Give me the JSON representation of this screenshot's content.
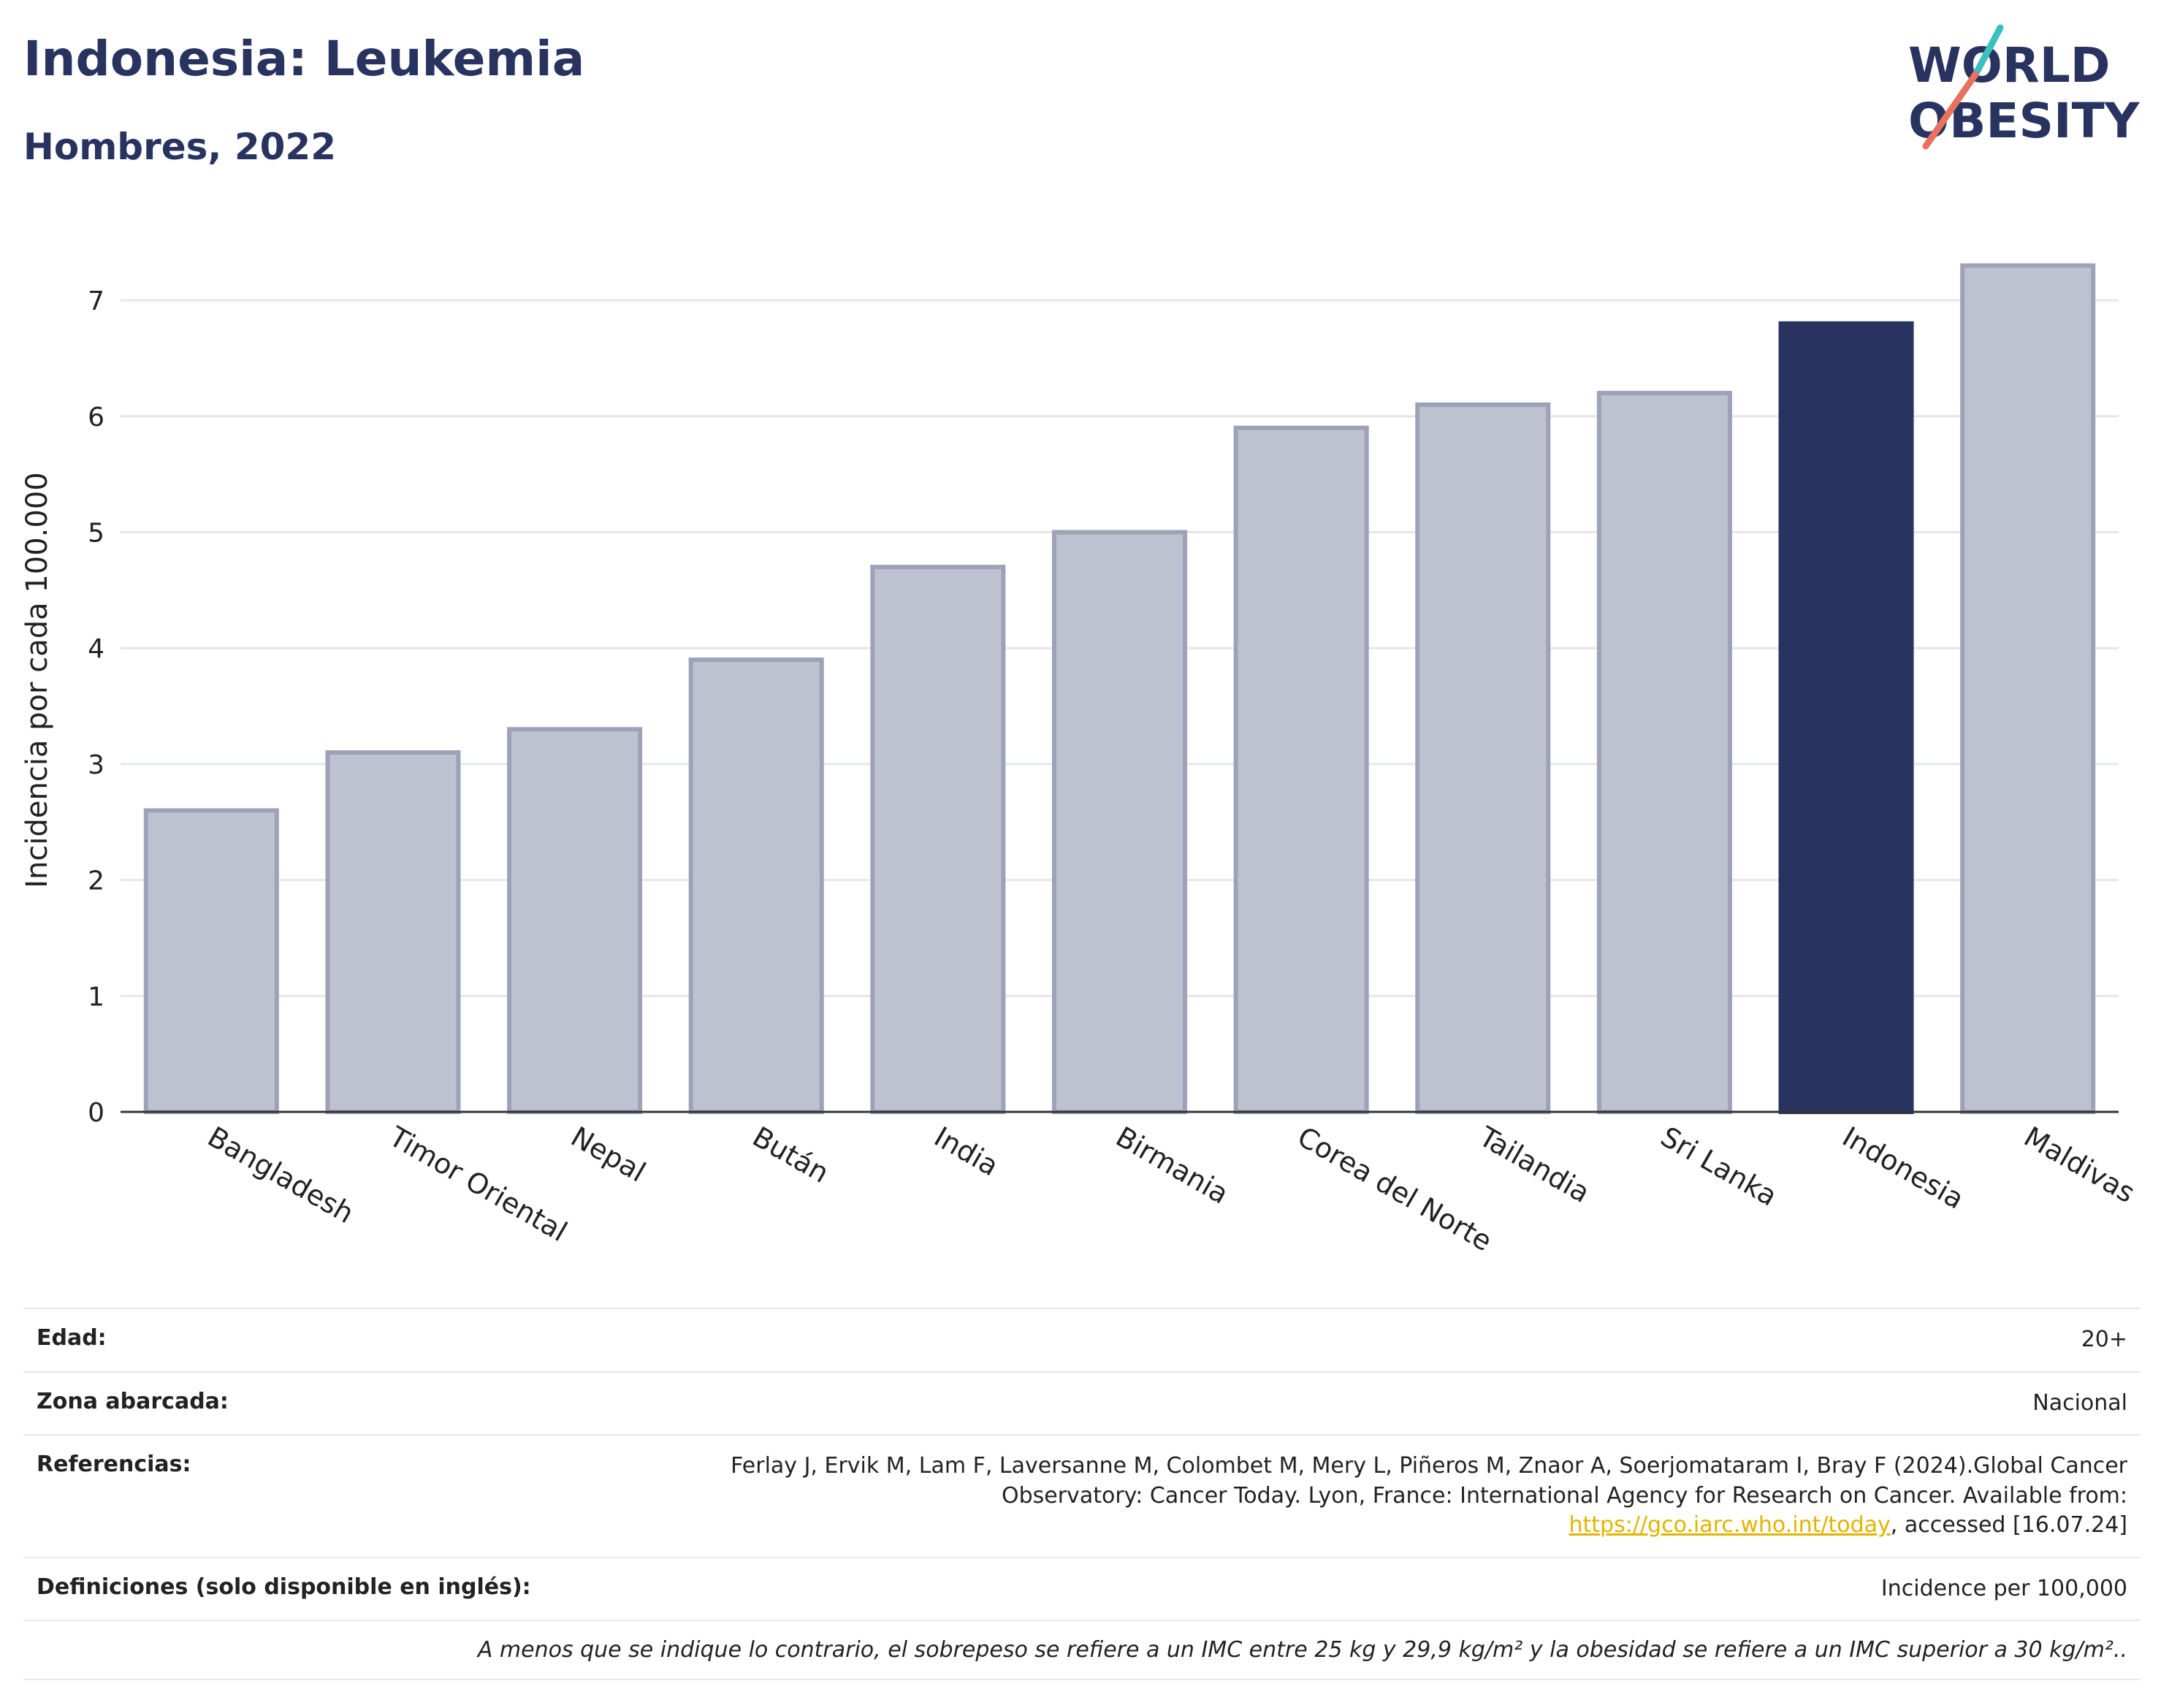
{
  "header": {
    "title": "Indonesia: Leukemia",
    "subtitle": "Hombres, 2022"
  },
  "logo": {
    "line1": "WORLD",
    "line2": "OBESITY"
  },
  "chart_data": {
    "type": "bar",
    "categories": [
      "Bangladesh",
      "Timor Oriental",
      "Nepal",
      "Bután",
      "India",
      "Birmania",
      "Corea del Norte",
      "Tailandia",
      "Sri Lanka",
      "Indonesia",
      "Maldivas"
    ],
    "values": [
      2.6,
      3.1,
      3.3,
      3.9,
      4.7,
      5.0,
      5.9,
      6.1,
      6.2,
      6.8,
      7.3
    ],
    "highlight": "Indonesia",
    "ylabel": "Incidencia por cada 100.000",
    "xlabel": "",
    "ylim": [
      0,
      7.7
    ],
    "yticks": [
      0,
      1,
      2,
      3,
      4,
      5,
      6,
      7
    ],
    "grid": true,
    "colors": {
      "bar": "#bec2d0",
      "bar_border": "#9da2b8",
      "highlight": "#283360",
      "grid": "#e4e6ec",
      "axis": "#333333"
    }
  },
  "meta": {
    "age_label": "Edad:",
    "age_value": "20+",
    "zone_label": "Zona abarcada:",
    "zone_value": "Nacional",
    "ref_label": "Referencias:",
    "ref_text_1": "Ferlay J, Ervik M, Lam F, Laversanne M, Colombet M, Mery L, Piñeros M, Znaor A, Soerjomataram I, Bray F (2024).Global Cancer Observatory: Cancer Today. Lyon, France: International Agency for Research on Cancer. Available from: ",
    "ref_link": "https://gco.iarc.who.int/today",
    "ref_text_2": ", accessed [16.07.24]",
    "def_label": "Definiciones (solo disponible en inglés):",
    "def_value": "Incidence per 100,000",
    "note": "A menos que se indique lo contrario, el sobrepeso se refiere a un IMC entre 25 kg y 29,9 kg/m² y la obesidad se refiere a un IMC superior a 30 kg/m².."
  }
}
